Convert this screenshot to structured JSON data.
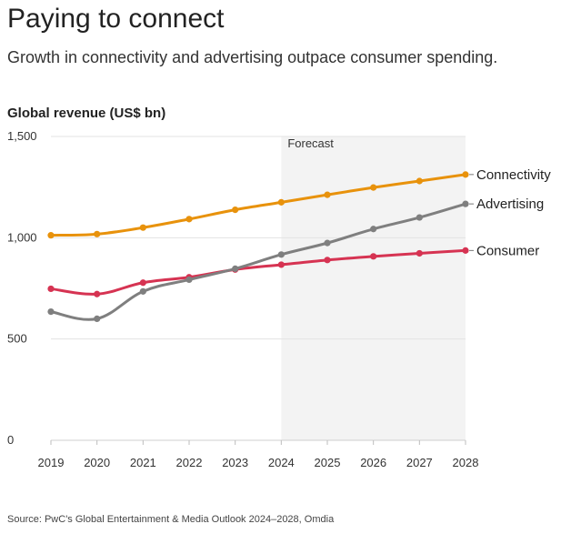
{
  "header": {
    "title": "Paying to connect",
    "subtitle": "Growth in connectivity and advertising outpace consumer spending."
  },
  "footer": {
    "source": "Source: PwC's Global Entertainment & Media Outlook 2024–2028, Omdia"
  },
  "chart_data": {
    "type": "line",
    "title": "Paying to connect",
    "subtitle": "Growth in connectivity and advertising outpace consumer spending.",
    "ylabel": "Global revenue (US$ bn)",
    "xlabel": "",
    "x": [
      "2019",
      "2020",
      "2021",
      "2022",
      "2023",
      "2024",
      "2025",
      "2026",
      "2027",
      "2028"
    ],
    "ylim": [
      0,
      1500
    ],
    "yticks": [
      0,
      500,
      1000,
      1500
    ],
    "ytick_labels": [
      "0",
      "500",
      "1,000",
      "1,500"
    ],
    "grid": "horizontal",
    "forecast": {
      "label": "Forecast",
      "start": "2024",
      "end": "2028"
    },
    "series": [
      {
        "name": "Connectivity",
        "color": "#e8920c",
        "values": [
          1012,
          1018,
          1050,
          1092,
          1138,
          1175,
          1212,
          1248,
          1280,
          1312
        ]
      },
      {
        "name": "Advertising",
        "color": "#7f7f7f",
        "values": [
          635,
          600,
          735,
          793,
          847,
          917,
          974,
          1043,
          1100,
          1167
        ]
      },
      {
        "name": "Consumer",
        "color": "#d63352",
        "values": [
          748,
          722,
          778,
          805,
          843,
          867,
          890,
          908,
          923,
          937
        ]
      }
    ]
  }
}
